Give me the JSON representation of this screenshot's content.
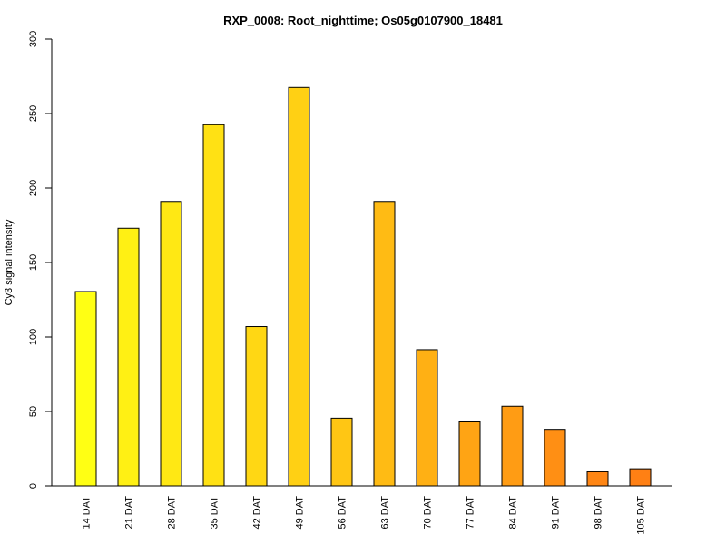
{
  "chart_data": {
    "type": "bar",
    "title": "RXP_0008: Root_nighttime; Os05g0107900_18481",
    "xlabel": "",
    "ylabel": "Cy3 signal intensity",
    "ylim": [
      0,
      300
    ],
    "yticks": [
      0,
      50,
      100,
      150,
      200,
      250,
      300
    ],
    "categories": [
      "14 DAT",
      "21 DAT",
      "28 DAT",
      "35 DAT",
      "42 DAT",
      "49 DAT",
      "56 DAT",
      "63 DAT",
      "70 DAT",
      "77 DAT",
      "84 DAT",
      "91 DAT",
      "98 DAT",
      "105 DAT"
    ],
    "values": [
      130.5,
      173,
      191,
      242.5,
      107,
      267.5,
      45.5,
      191,
      91.5,
      43,
      53.5,
      38,
      9.5,
      11.5
    ],
    "colors": [
      "#FFFF14",
      "#FFF014",
      "#FFE814",
      "#FFE114",
      "#FFD714",
      "#FFD014",
      "#FFC614",
      "#FFBB14",
      "#FFB014",
      "#FFA414",
      "#FF9C14",
      "#FF8F14",
      "#FF8614",
      "#FF8014"
    ],
    "grid": false,
    "legend": "none"
  }
}
